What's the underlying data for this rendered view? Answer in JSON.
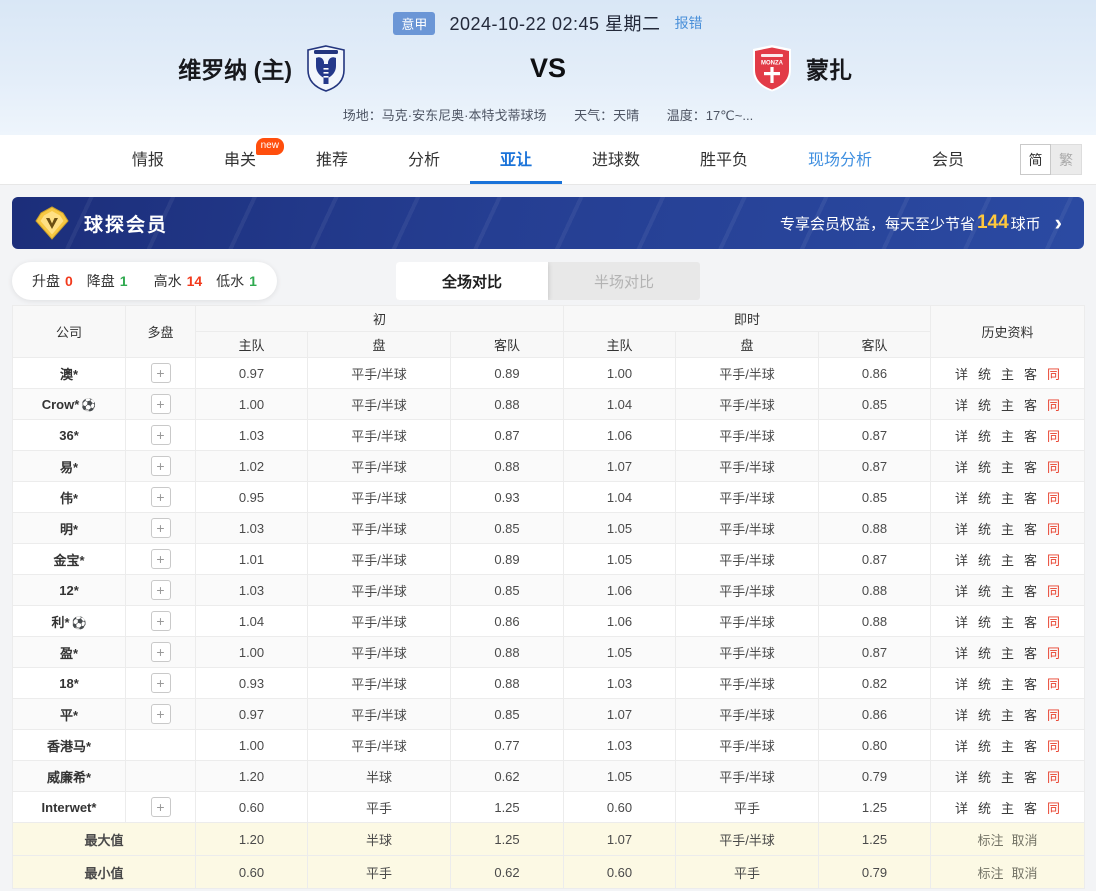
{
  "match_header": {
    "league_badge": "意甲",
    "datetime": "2024-10-22 02:45 星期二",
    "report_link": "报错",
    "home_team": "维罗纳 (主)",
    "vs_label": "VS",
    "away_team": "蒙扎",
    "venue": "场地：马克·安东尼奥·本特戈蒂球场",
    "weather": "天气：天晴",
    "temperature": "温度：17℃~..."
  },
  "nav": {
    "tabs": [
      {
        "id": "intel",
        "label": "情报"
      },
      {
        "id": "parlay",
        "label": "串关",
        "badge": "new"
      },
      {
        "id": "recommend",
        "label": "推荐"
      },
      {
        "id": "analysis",
        "label": "分析"
      },
      {
        "id": "asian-handicap",
        "label": "亚让",
        "active": true
      },
      {
        "id": "goals",
        "label": "进球数"
      },
      {
        "id": "win-draw-lose",
        "label": "胜平负"
      },
      {
        "id": "live-analysis",
        "label": "现场分析",
        "highlight": true
      },
      {
        "id": "member",
        "label": "会员"
      }
    ],
    "lang_simplified": "简",
    "lang_traditional": "繁"
  },
  "vip_banner": {
    "title": "球探会员",
    "promo_prefix": "专享会员权益，每天至少节省",
    "promo_amount": "144",
    "promo_suffix": "球币",
    "arrow": "›",
    "accent_color": "#ffc83d"
  },
  "stats_bar": {
    "items": [
      {
        "id": "rise",
        "label": "升盘",
        "value": "0",
        "color": "#f23a1d"
      },
      {
        "id": "drop",
        "label": "降盘",
        "value": "1",
        "color": "#2fa94f"
      },
      {
        "id": "high-water",
        "label": "高水",
        "value": "14",
        "color": "#f23a1d"
      },
      {
        "id": "low-water",
        "label": "低水",
        "value": "1",
        "color": "#2fa94f"
      }
    ],
    "view_tabs": [
      {
        "id": "full-match",
        "label": "全场对比",
        "active": true
      },
      {
        "id": "half-match",
        "label": "半场对比",
        "active": false
      }
    ]
  },
  "table": {
    "headers": {
      "company": "公司",
      "multi": "多盘",
      "initial": "初",
      "live": "即时",
      "history": "历史资料",
      "home": "主队",
      "handicap": "盘",
      "away": "客队"
    },
    "plus_label": "+",
    "ball_icon": "⚽",
    "history_links": [
      {
        "id": "detail",
        "label": "详"
      },
      {
        "id": "stats",
        "label": "统"
      },
      {
        "id": "home",
        "label": "主"
      },
      {
        "id": "away",
        "label": "客"
      },
      {
        "id": "same",
        "label": "同",
        "red": true
      }
    ],
    "rows": [
      {
        "name": "澳*",
        "ball": false,
        "plus": true,
        "values": [
          "0.97",
          "平手/半球",
          "0.89",
          "1.00",
          "平手/半球",
          "0.86"
        ]
      },
      {
        "name": "Crow*",
        "ball": true,
        "plus": true,
        "values": [
          "1.00",
          "平手/半球",
          "0.88",
          "1.04",
          "平手/半球",
          "0.85"
        ]
      },
      {
        "name": "36*",
        "ball": false,
        "plus": true,
        "values": [
          "1.03",
          "平手/半球",
          "0.87",
          "1.06",
          "平手/半球",
          "0.87"
        ]
      },
      {
        "name": "易*",
        "ball": false,
        "plus": true,
        "values": [
          "1.02",
          "平手/半球",
          "0.88",
          "1.07",
          "平手/半球",
          "0.87"
        ]
      },
      {
        "name": "伟*",
        "ball": false,
        "plus": true,
        "values": [
          "0.95",
          "平手/半球",
          "0.93",
          "1.04",
          "平手/半球",
          "0.85"
        ]
      },
      {
        "name": "明*",
        "ball": false,
        "plus": true,
        "values": [
          "1.03",
          "平手/半球",
          "0.85",
          "1.05",
          "平手/半球",
          "0.88"
        ]
      },
      {
        "name": "金宝*",
        "ball": false,
        "plus": true,
        "values": [
          "1.01",
          "平手/半球",
          "0.89",
          "1.05",
          "平手/半球",
          "0.87"
        ]
      },
      {
        "name": "12*",
        "ball": false,
        "plus": true,
        "values": [
          "1.03",
          "平手/半球",
          "0.85",
          "1.06",
          "平手/半球",
          "0.88"
        ]
      },
      {
        "name": "利*",
        "ball": true,
        "plus": true,
        "values": [
          "1.04",
          "平手/半球",
          "0.86",
          "1.06",
          "平手/半球",
          "0.88"
        ]
      },
      {
        "name": "盈*",
        "ball": false,
        "plus": true,
        "values": [
          "1.00",
          "平手/半球",
          "0.88",
          "1.05",
          "平手/半球",
          "0.87"
        ]
      },
      {
        "name": "18*",
        "ball": false,
        "plus": true,
        "values": [
          "0.93",
          "平手/半球",
          "0.88",
          "1.03",
          "平手/半球",
          "0.82"
        ]
      },
      {
        "name": "平*",
        "ball": false,
        "plus": true,
        "values": [
          "0.97",
          "平手/半球",
          "0.85",
          "1.07",
          "平手/半球",
          "0.86"
        ]
      },
      {
        "name": "香港马*",
        "ball": false,
        "plus": false,
        "values": [
          "1.00",
          "平手/半球",
          "0.77",
          "1.03",
          "平手/半球",
          "0.80"
        ]
      },
      {
        "name": "威廉希*",
        "ball": false,
        "plus": false,
        "values": [
          "1.20",
          "半球",
          "0.62",
          "1.05",
          "平手/半球",
          "0.79"
        ]
      },
      {
        "name": "Interwet*",
        "ball": false,
        "plus": true,
        "values": [
          "0.60",
          "平手",
          "1.25",
          "0.60",
          "平手",
          "1.25"
        ]
      }
    ],
    "summary_rows": [
      {
        "label": "最大值",
        "values": [
          "1.20",
          "半球",
          "1.25",
          "1.07",
          "平手/半球",
          "1.25"
        ],
        "actions": [
          {
            "id": "mark",
            "label": "标注"
          },
          {
            "id": "cancel",
            "label": "取消"
          }
        ]
      },
      {
        "label": "最小值",
        "values": [
          "0.60",
          "平手",
          "0.62",
          "0.60",
          "平手",
          "0.79"
        ],
        "actions": [
          {
            "id": "mark",
            "label": "标注"
          },
          {
            "id": "cancel",
            "label": "取消"
          }
        ]
      }
    ]
  }
}
